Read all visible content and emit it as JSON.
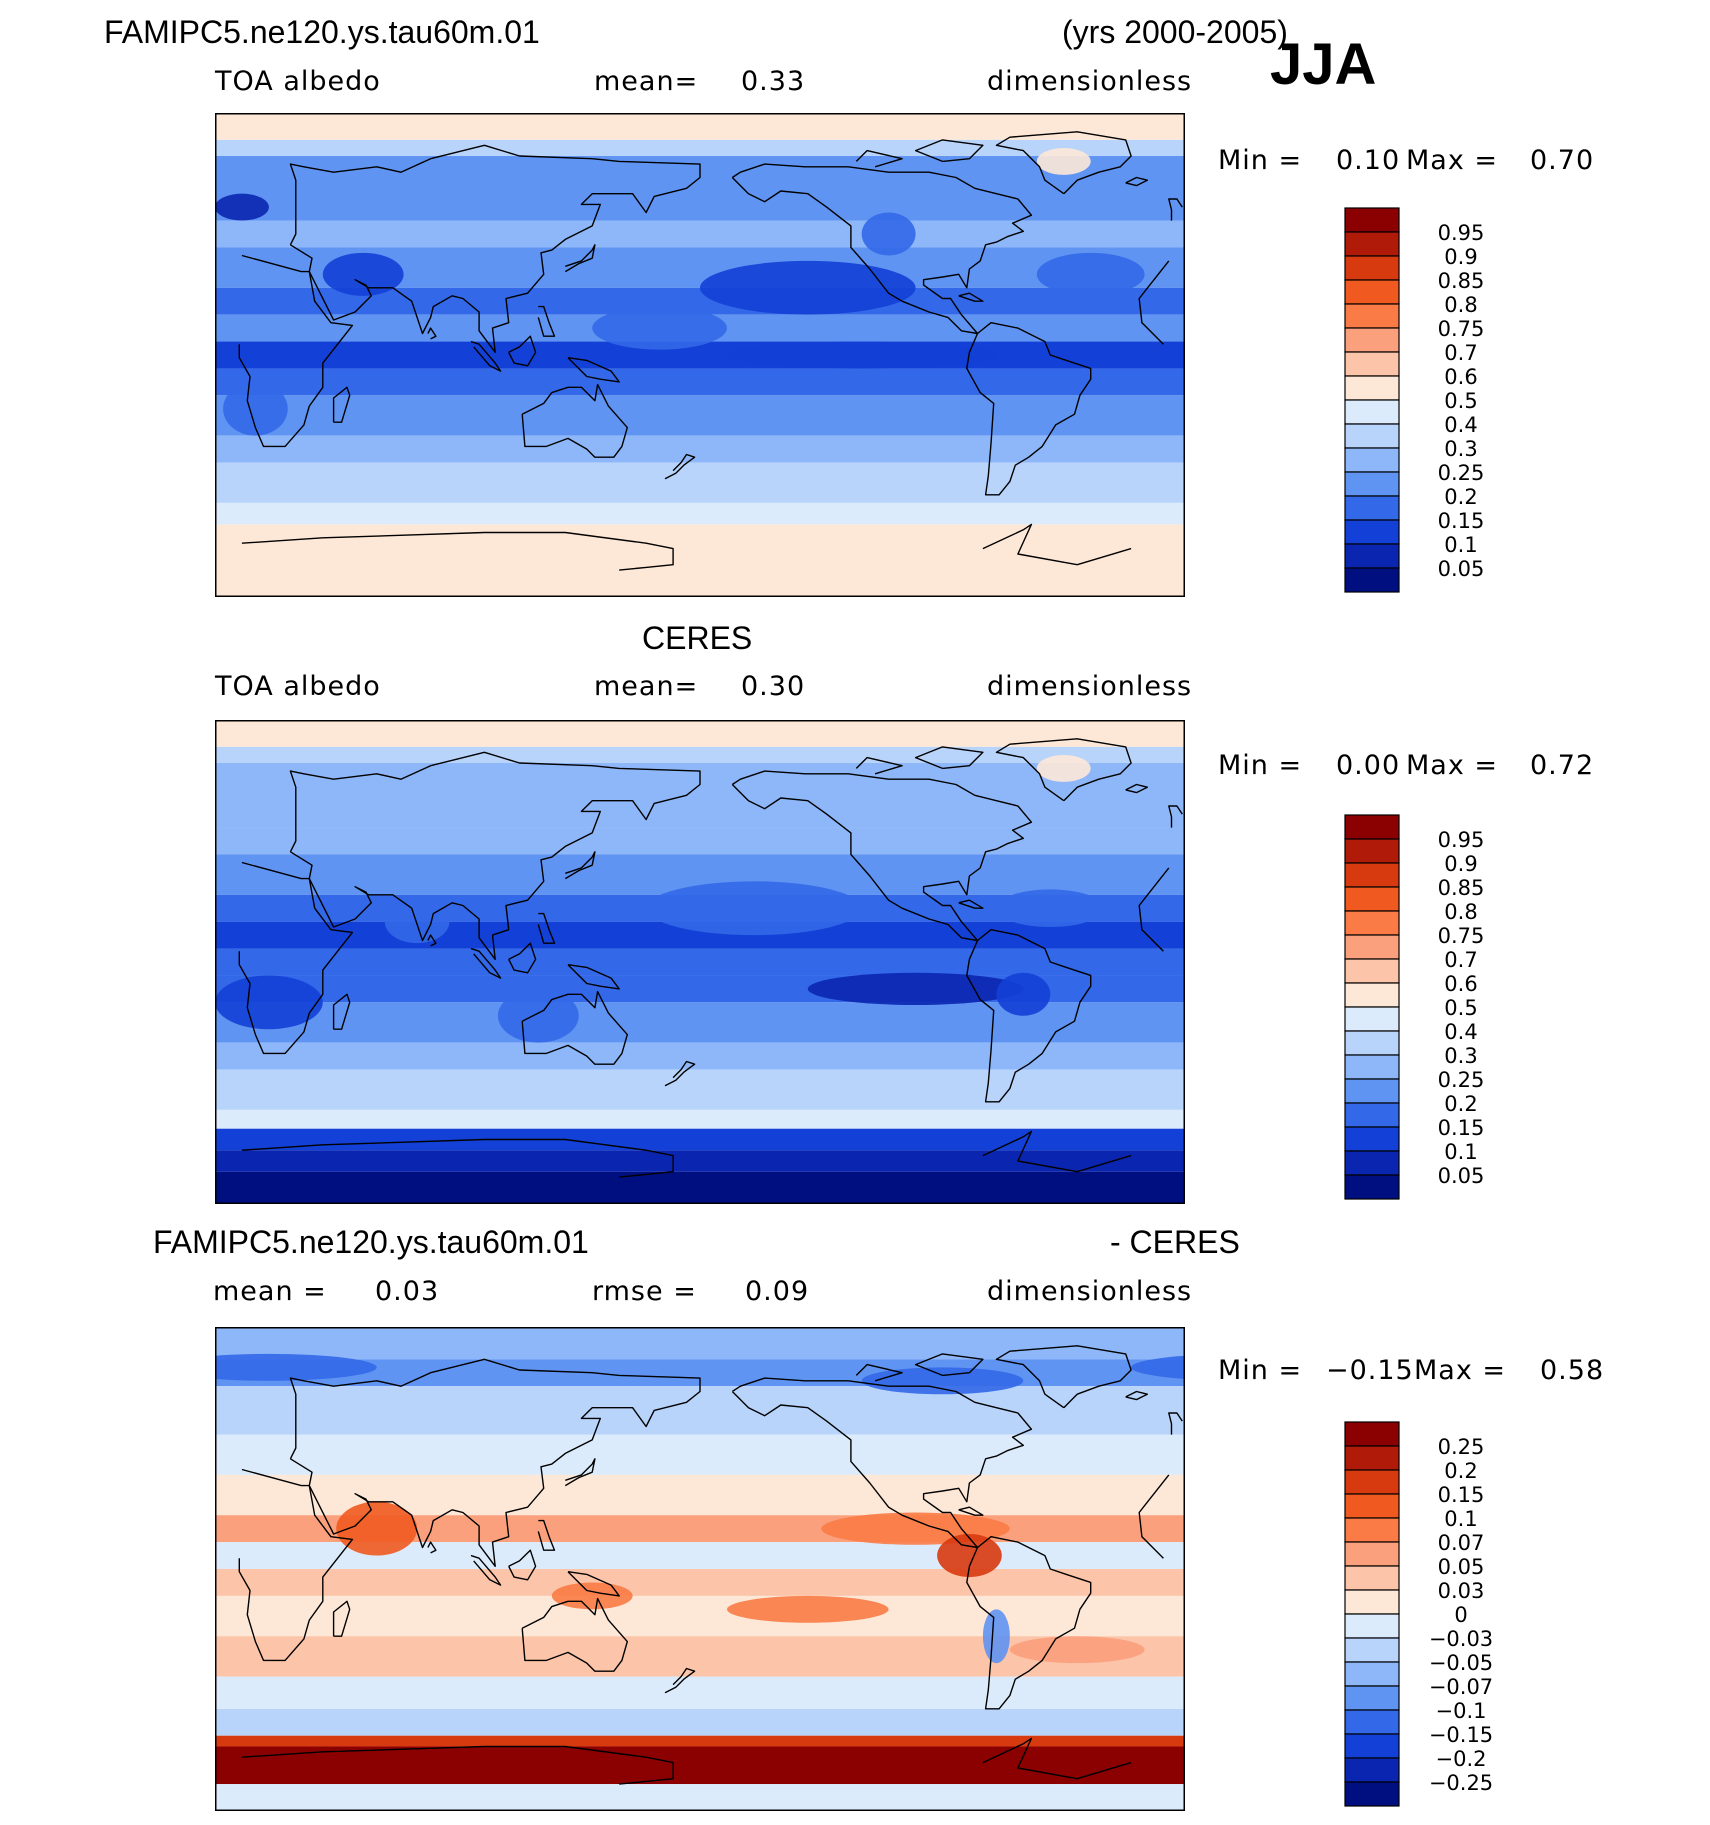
{
  "header": {
    "case_name": "FAMIPC5.ne120.ys.tau60m.01",
    "years": "(yrs 2000-2005)",
    "season": "JJA"
  },
  "panels": [
    {
      "title": "",
      "variable": "TOA albedo",
      "stat_label": "mean=",
      "stat_value": "0.33",
      "stat2_label": "",
      "stat2_value": "",
      "units": "dimensionless",
      "min_label": "Min =",
      "min_value": "0.10",
      "max_label": "Max =",
      "max_value": "0.70"
    },
    {
      "title": "CERES",
      "variable": "TOA albedo",
      "stat_label": "mean=",
      "stat_value": "0.30",
      "stat2_label": "",
      "stat2_value": "",
      "units": "dimensionless",
      "min_label": "Min =",
      "min_value": "0.00",
      "max_label": "Max =",
      "max_value": "0.72"
    },
    {
      "title": "FAMIPC5.ne120.ys.tau60m.01",
      "title_right": "- CERES",
      "variable": "",
      "stat_label": "mean =",
      "stat_value": "0.03",
      "stat2_label": "rmse =",
      "stat2_value": "0.09",
      "units": "dimensionless",
      "min_label": "Min =",
      "min_value": "−0.15",
      "max_label": "Max =",
      "max_value": "0.58"
    }
  ],
  "chart_data": [
    {
      "type": "heatmap",
      "title": "FAMIPC5.ne120.ys.tau60m.01 TOA albedo (yrs 2000-2005) JJA",
      "colorbar_levels": [
        "0.95",
        "0.9",
        "0.85",
        "0.8",
        "0.75",
        "0.7",
        "0.6",
        "0.5",
        "0.4",
        "0.3",
        "0.25",
        "0.2",
        "0.15",
        "0.1",
        "0.05"
      ],
      "colorbar_colors": [
        "#8b0000",
        "#b01a08",
        "#d83a10",
        "#f05a20",
        "#fa7b45",
        "#fba07c",
        "#fcc4a8",
        "#fde8d8",
        "#dcebfb",
        "#b8d4fb",
        "#8db7f8",
        "#5f94f2",
        "#3368e8",
        "#1340d6",
        "#0a26b0",
        "#000f80"
      ],
      "min": 0.1,
      "max": 0.7,
      "mean": 0.33
    },
    {
      "type": "heatmap",
      "title": "CERES TOA albedo",
      "colorbar_levels": [
        "0.95",
        "0.9",
        "0.85",
        "0.8",
        "0.75",
        "0.7",
        "0.6",
        "0.5",
        "0.4",
        "0.3",
        "0.25",
        "0.2",
        "0.15",
        "0.1",
        "0.05"
      ],
      "colorbar_colors": [
        "#8b0000",
        "#b01a08",
        "#d83a10",
        "#f05a20",
        "#fa7b45",
        "#fba07c",
        "#fcc4a8",
        "#fde8d8",
        "#dcebfb",
        "#b8d4fb",
        "#8db7f8",
        "#5f94f2",
        "#3368e8",
        "#1340d6",
        "#0a26b0",
        "#000f80"
      ],
      "min": 0.0,
      "max": 0.72,
      "mean": 0.3
    },
    {
      "type": "heatmap",
      "title": "FAMIPC5.ne120.ys.tau60m.01 - CERES",
      "colorbar_levels": [
        "0.25",
        "0.2",
        "0.15",
        "0.1",
        "0.07",
        "0.05",
        "0.03",
        "0",
        "−0.03",
        "−0.05",
        "−0.07",
        "−0.1",
        "−0.15",
        "−0.2",
        "−0.25"
      ],
      "colorbar_colors": [
        "#8b0000",
        "#b01a08",
        "#d83a10",
        "#f05a20",
        "#fa7b45",
        "#fba07c",
        "#fcc4a8",
        "#fde8d8",
        "#dcebfb",
        "#b8d4fb",
        "#8db7f8",
        "#5f94f2",
        "#3368e8",
        "#1340d6",
        "#0a26b0",
        "#000f80"
      ],
      "min": -0.15,
      "max": 0.58,
      "mean": 0.03,
      "rmse": 0.09
    }
  ]
}
